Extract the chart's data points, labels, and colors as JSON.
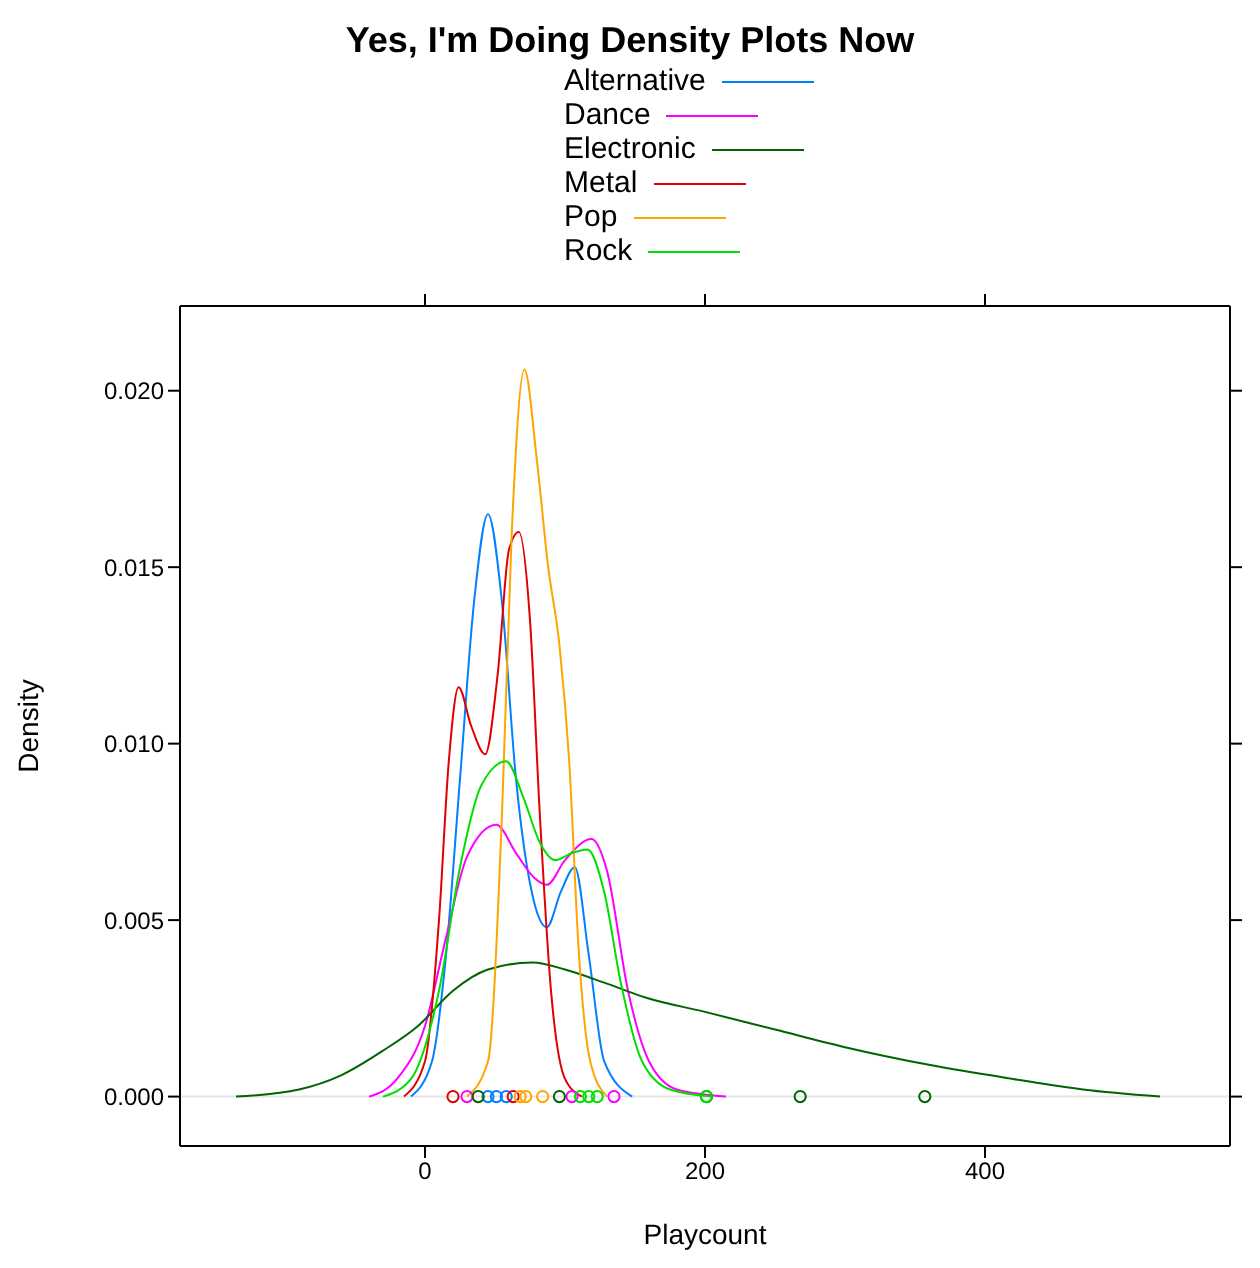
{
  "chart_data": {
    "type": "line",
    "title": "Yes, I'm Doing Density Plots Now",
    "xlabel": "Playcount",
    "ylabel": "Density",
    "legend": "top",
    "line_style": "solid",
    "xlim": [
      -175,
      575
    ],
    "xticks": [
      0,
      200,
      400
    ],
    "ylim": [
      -0.0014,
      0.0224
    ],
    "yticks": [
      {
        "value": 0,
        "label": "0.000"
      },
      {
        "value": 0.005,
        "label": "0.005"
      },
      {
        "value": 0.01,
        "label": "0.010"
      },
      {
        "value": 0.015,
        "label": "0.015"
      },
      {
        "value": 0.02,
        "label": "0.020"
      }
    ],
    "ref_lines": [
      {
        "axis": "y",
        "value": 0,
        "color": "#e6e6e6"
      }
    ],
    "series": [
      {
        "name": "Alternative",
        "color": "#0080ff",
        "x": [
          -10,
          5,
          15,
          25,
          35,
          45,
          55,
          65,
          78,
          87,
          97,
          107,
          117,
          128,
          148
        ],
        "values": [
          0,
          0.001,
          0.004,
          0.009,
          0.014,
          0.0165,
          0.014,
          0.009,
          0.0055,
          0.0048,
          0.0058,
          0.0065,
          0.004,
          0.001,
          0
        ]
      },
      {
        "name": "Dance",
        "color": "#ff00ff",
        "x": [
          -40,
          -20,
          0,
          15,
          30,
          51,
          65,
          78,
          87,
          100,
          119,
          130,
          145,
          160,
          180,
          215
        ],
        "values": [
          0,
          0.0005,
          0.002,
          0.0045,
          0.0068,
          0.0077,
          0.0069,
          0.0062,
          0.006,
          0.0067,
          0.0073,
          0.0064,
          0.003,
          0.001,
          0.0002,
          0
        ]
      },
      {
        "name": "Electronic",
        "color": "#006400",
        "x": [
          -135,
          -90,
          -60,
          -30,
          -5,
          20,
          45,
          77,
          100,
          130,
          158,
          200,
          250,
          300,
          360,
          420,
          470,
          525
        ],
        "values": [
          0,
          0.0002,
          0.0006,
          0.0013,
          0.002,
          0.003,
          0.0036,
          0.0038,
          0.0036,
          0.0032,
          0.0028,
          0.0024,
          0.0019,
          0.0014,
          0.0009,
          0.0005,
          0.0002,
          0
        ]
      },
      {
        "name": "Metal",
        "color": "#e00000",
        "x": [
          -15,
          0,
          10,
          17,
          24,
          33,
          43,
          52,
          60,
          67,
          75,
          82,
          90,
          100,
          112
        ],
        "values": [
          0,
          0.001,
          0.005,
          0.0095,
          0.0116,
          0.0105,
          0.0097,
          0.012,
          0.0155,
          0.016,
          0.0135,
          0.008,
          0.003,
          0.0005,
          0
        ]
      },
      {
        "name": "Pop",
        "color": "#ffa500",
        "x": [
          30,
          45,
          55,
          62,
          71,
          80,
          88,
          96,
          103,
          110,
          118,
          130
        ],
        "values": [
          0,
          0.001,
          0.008,
          0.016,
          0.0206,
          0.018,
          0.015,
          0.0128,
          0.0095,
          0.004,
          0.001,
          0
        ]
      },
      {
        "name": "Rock",
        "color": "#00e000",
        "x": [
          -30,
          -10,
          10,
          25,
          40,
          58,
          70,
          82,
          93,
          105,
          116,
          128,
          140,
          155,
          175,
          205
        ],
        "values": [
          0,
          0.0005,
          0.003,
          0.0065,
          0.0088,
          0.0095,
          0.0085,
          0.0072,
          0.0067,
          0.0069,
          0.007,
          0.0058,
          0.0032,
          0.001,
          0.0002,
          0
        ]
      },
      {
        "type": "scatter",
        "marker": "circle",
        "color": "#0080ff",
        "x": [
          45,
          51,
          58
        ],
        "values": [
          0,
          0,
          0
        ]
      },
      {
        "type": "scatter",
        "marker": "circle",
        "color": "#ff00ff",
        "x": [
          30,
          105,
          135
        ],
        "values": [
          0,
          0,
          0
        ]
      },
      {
        "type": "scatter",
        "marker": "circle",
        "color": "#006400",
        "x": [
          38,
          96,
          201,
          268,
          357
        ],
        "values": [
          0,
          0,
          0,
          0,
          0
        ]
      },
      {
        "type": "scatter",
        "marker": "circle",
        "color": "#e00000",
        "x": [
          20,
          63
        ],
        "values": [
          0,
          0
        ]
      },
      {
        "type": "scatter",
        "marker": "circle",
        "color": "#ffa500",
        "x": [
          68,
          72,
          84
        ],
        "values": [
          0,
          0,
          0
        ]
      },
      {
        "type": "scatter",
        "marker": "circle",
        "color": "#00e000",
        "x": [
          111,
          117,
          123,
          201
        ],
        "values": [
          0,
          0,
          0,
          0
        ]
      }
    ]
  }
}
